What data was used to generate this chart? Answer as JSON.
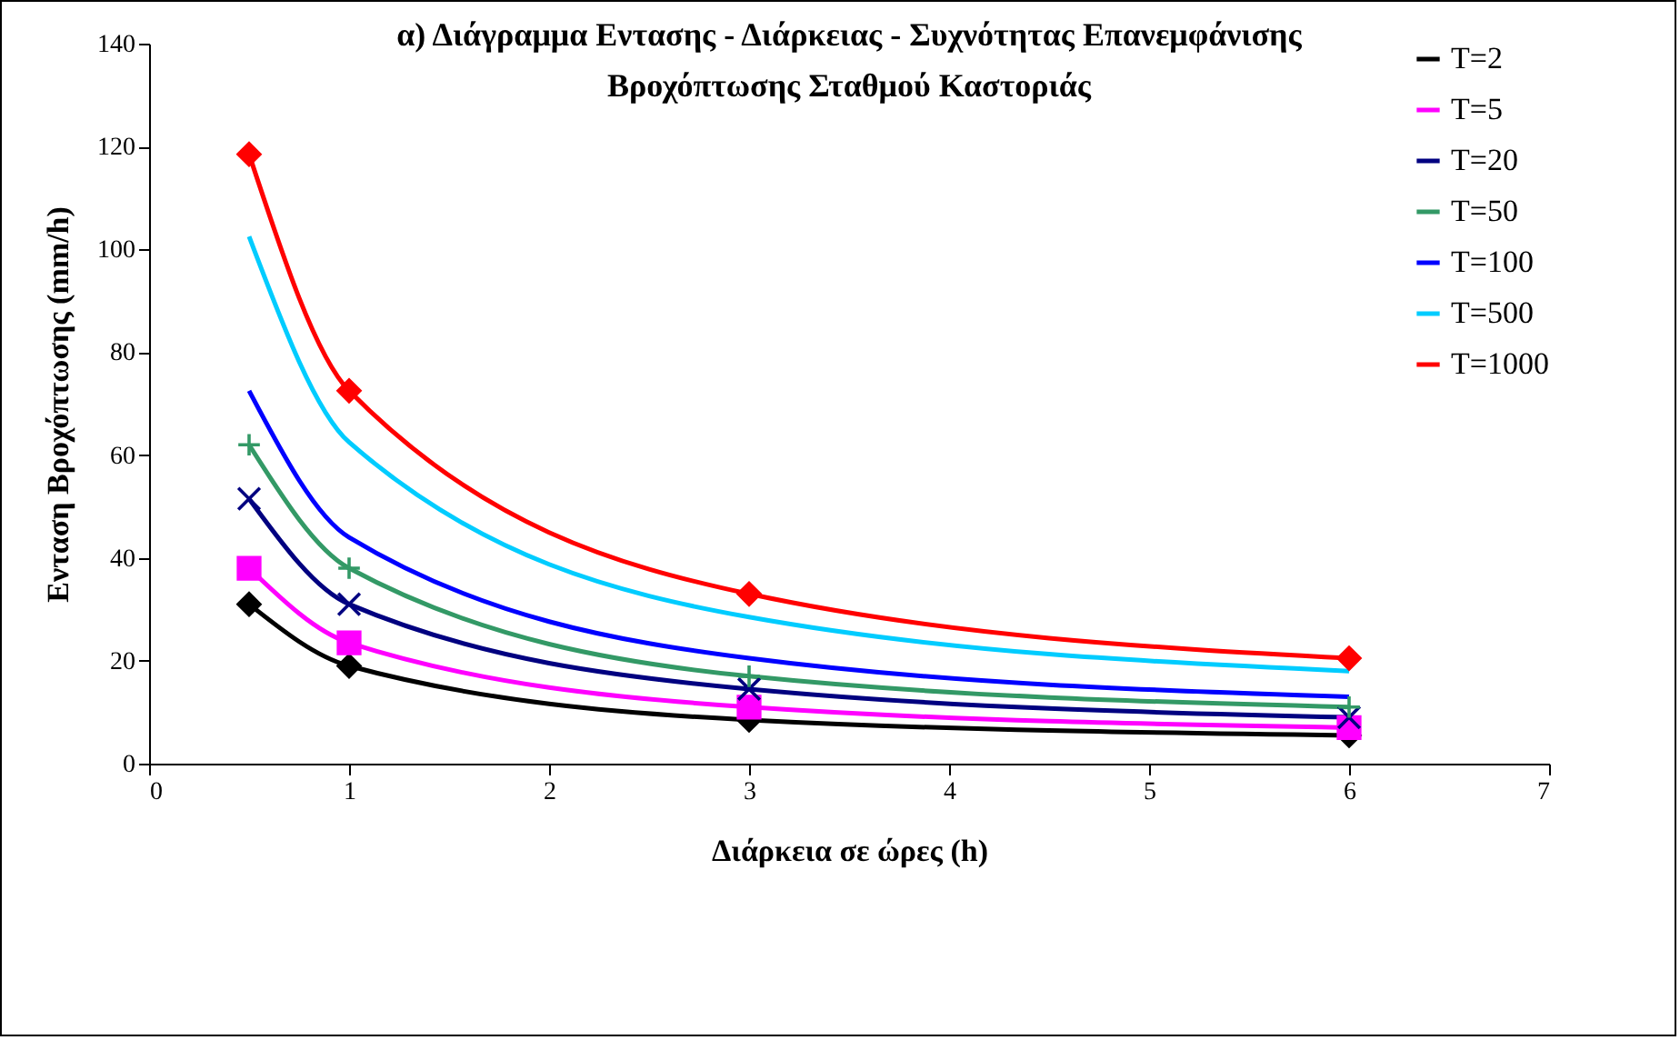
{
  "chart_data": {
    "type": "line",
    "title": [
      "α) Διάγραμμα Εντασης - Διάρκειας - Συχνότητας Επανεμφάνισης",
      "Βροχόπτωσης Σταθμού Καστοριάς"
    ],
    "xlabel": "Διάρκεια σε ώρες (h)",
    "ylabel": "Ενταση Βροχόπτωσης (mm/h)",
    "x": [
      0.5,
      1,
      3,
      6
    ],
    "series": [
      {
        "name": "T=2",
        "color": "#000000",
        "marker": "diamond",
        "values": [
          31,
          19,
          8.5,
          5.5
        ]
      },
      {
        "name": "T=5",
        "color": "#ff00ff",
        "marker": "square",
        "values": [
          38,
          23.5,
          11,
          7
        ]
      },
      {
        "name": "T=20",
        "color": "#000080",
        "marker": "x",
        "values": [
          51.5,
          31,
          14.5,
          9
        ]
      },
      {
        "name": "T=50",
        "color": "#339966",
        "marker": "plus",
        "values": [
          62,
          38,
          17,
          11
        ]
      },
      {
        "name": "T=100",
        "color": "#0000ff",
        "marker": "none",
        "values": [
          72.5,
          44,
          20.5,
          13
        ]
      },
      {
        "name": "T=500",
        "color": "#00ccff",
        "marker": "none",
        "values": [
          102.5,
          62.5,
          28.5,
          18
        ]
      },
      {
        "name": "T=1000",
        "color": "#ff0000",
        "marker": "diamond",
        "values": [
          118.5,
          72.5,
          33,
          20.5
        ]
      }
    ],
    "xlim": [
      0,
      7
    ],
    "xticks": [
      0,
      1,
      2,
      3,
      4,
      5,
      6,
      7
    ],
    "ylim": [
      0,
      140
    ],
    "yticks": [
      0,
      20,
      40,
      60,
      80,
      100,
      120,
      140
    ],
    "grid": false,
    "legend": "top right"
  }
}
